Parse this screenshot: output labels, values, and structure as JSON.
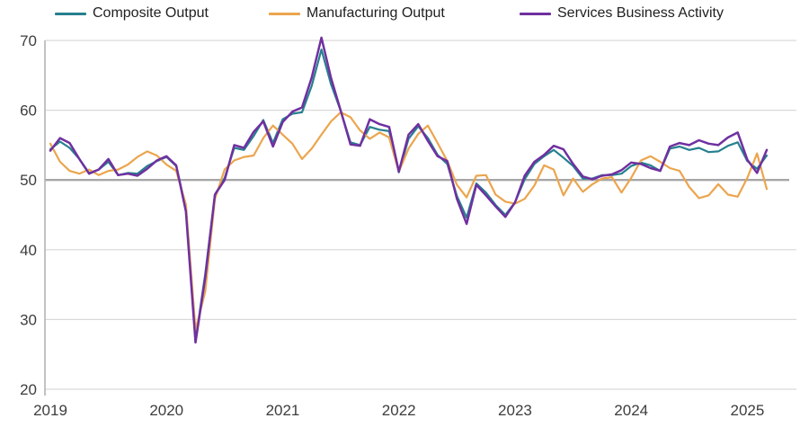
{
  "chart_data": {
    "type": "line",
    "title": "",
    "xlabel": "",
    "ylabel": "",
    "ylim": [
      20,
      70
    ],
    "y_ticks": [
      20,
      30,
      40,
      50,
      60,
      70
    ],
    "x_tick_labels": [
      "2019",
      "2020",
      "2021",
      "2022",
      "2023",
      "2024",
      "2025"
    ],
    "x_frequency": "monthly",
    "x_start": "2019-01",
    "x_end": "2025-03",
    "points_per_series": 75,
    "reference_line_value": 50,
    "grid": true,
    "legend_position": "top",
    "series": [
      {
        "name": "Composite Output",
        "color": "#26808f",
        "values": [
          54.4,
          55.5,
          54.6,
          53.0,
          51.0,
          51.5,
          52.6,
          50.7,
          51.0,
          50.9,
          52.0,
          52.7,
          53.3,
          52.0,
          46.0,
          27.0,
          36.5,
          47.9,
          50.3,
          54.6,
          54.3,
          56.3,
          58.6,
          55.3,
          58.7,
          59.5,
          59.7,
          63.5,
          68.7,
          63.7,
          59.9,
          55.4,
          55.0,
          57.6,
          57.2,
          57.0,
          51.1,
          55.9,
          57.7,
          56.0,
          53.6,
          52.3,
          47.7,
          44.6,
          49.5,
          48.2,
          46.4,
          45.0,
          46.8,
          50.1,
          52.3,
          53.4,
          54.3,
          53.2,
          52.0,
          50.2,
          50.2,
          50.7,
          50.7,
          50.9,
          52.0,
          52.5,
          52.1,
          51.3,
          54.5,
          54.8,
          54.3,
          54.6,
          54.0,
          54.1,
          54.9,
          55.4,
          52.7,
          51.6,
          53.5
        ]
      },
      {
        "name": "Manufacturing Output",
        "color": "#eba54d",
        "values": [
          55.2,
          52.6,
          51.3,
          50.9,
          51.5,
          50.7,
          51.3,
          51.5,
          52.2,
          53.3,
          54.1,
          53.5,
          52.2,
          51.3,
          46.5,
          28.5,
          34.0,
          47.3,
          51.5,
          52.8,
          53.3,
          53.5,
          56.0,
          57.8,
          56.5,
          55.2,
          53.0,
          54.5,
          56.5,
          58.4,
          59.7,
          59.0,
          57.1,
          55.9,
          56.8,
          56.1,
          51.2,
          54.5,
          56.6,
          57.8,
          55.3,
          52.7,
          49.3,
          47.5,
          50.6,
          50.7,
          47.9,
          46.9,
          46.6,
          47.3,
          49.2,
          52.1,
          51.5,
          47.8,
          50.2,
          48.3,
          49.4,
          50.2,
          50.4,
          48.2,
          50.3,
          52.8,
          53.4,
          52.6,
          51.7,
          51.3,
          49.0,
          47.4,
          47.8,
          49.4,
          47.9,
          47.6,
          50.3,
          53.8,
          48.7
        ]
      },
      {
        "name": "Services Business Activity",
        "color": "#7030a0",
        "values": [
          54.2,
          56.0,
          55.3,
          53.0,
          50.9,
          51.5,
          53.0,
          50.7,
          50.9,
          50.6,
          51.6,
          52.8,
          53.4,
          52.1,
          45.5,
          26.7,
          36.0,
          47.9,
          50.0,
          55.0,
          54.6,
          56.9,
          58.4,
          54.8,
          58.3,
          59.8,
          60.4,
          64.7,
          70.4,
          64.6,
          59.9,
          55.1,
          54.9,
          58.7,
          58.0,
          57.6,
          51.2,
          56.5,
          58.0,
          55.6,
          53.4,
          52.7,
          47.3,
          43.7,
          49.3,
          47.8,
          46.2,
          44.7,
          46.8,
          50.6,
          52.6,
          53.6,
          54.9,
          54.4,
          52.3,
          50.5,
          50.1,
          50.6,
          50.8,
          51.4,
          52.5,
          52.3,
          51.7,
          51.3,
          54.8,
          55.3,
          55.0,
          55.7,
          55.2,
          55.0,
          56.1,
          56.8,
          52.9,
          51.0,
          54.3
        ]
      }
    ]
  },
  "axes": {
    "y_labels": [
      "70",
      "60",
      "50",
      "40",
      "30",
      "20"
    ],
    "x_labels": [
      "2019",
      "2020",
      "2021",
      "2022",
      "2023",
      "2024",
      "2025"
    ]
  },
  "colors": {
    "gridline": "#d9d9d9",
    "axis_line": "#b3b3b3",
    "reference_line": "#a6a6a6",
    "tick_text": "#3d3d3d",
    "legend_text": "#1f1f1f",
    "background": "#ffffff"
  }
}
